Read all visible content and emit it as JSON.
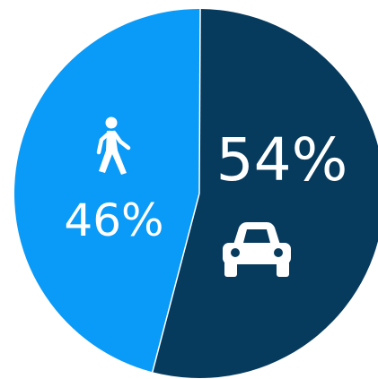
{
  "chart_data": {
    "type": "pie",
    "slices": [
      {
        "value": 54,
        "label": "54%",
        "icon": "car-icon",
        "color": "#073b5e"
      },
      {
        "value": 46,
        "label": "46%",
        "icon": "pedestrian-icon",
        "color": "#0a9af7"
      }
    ],
    "separator_color": "#ffffff",
    "background": "#ffffff"
  }
}
